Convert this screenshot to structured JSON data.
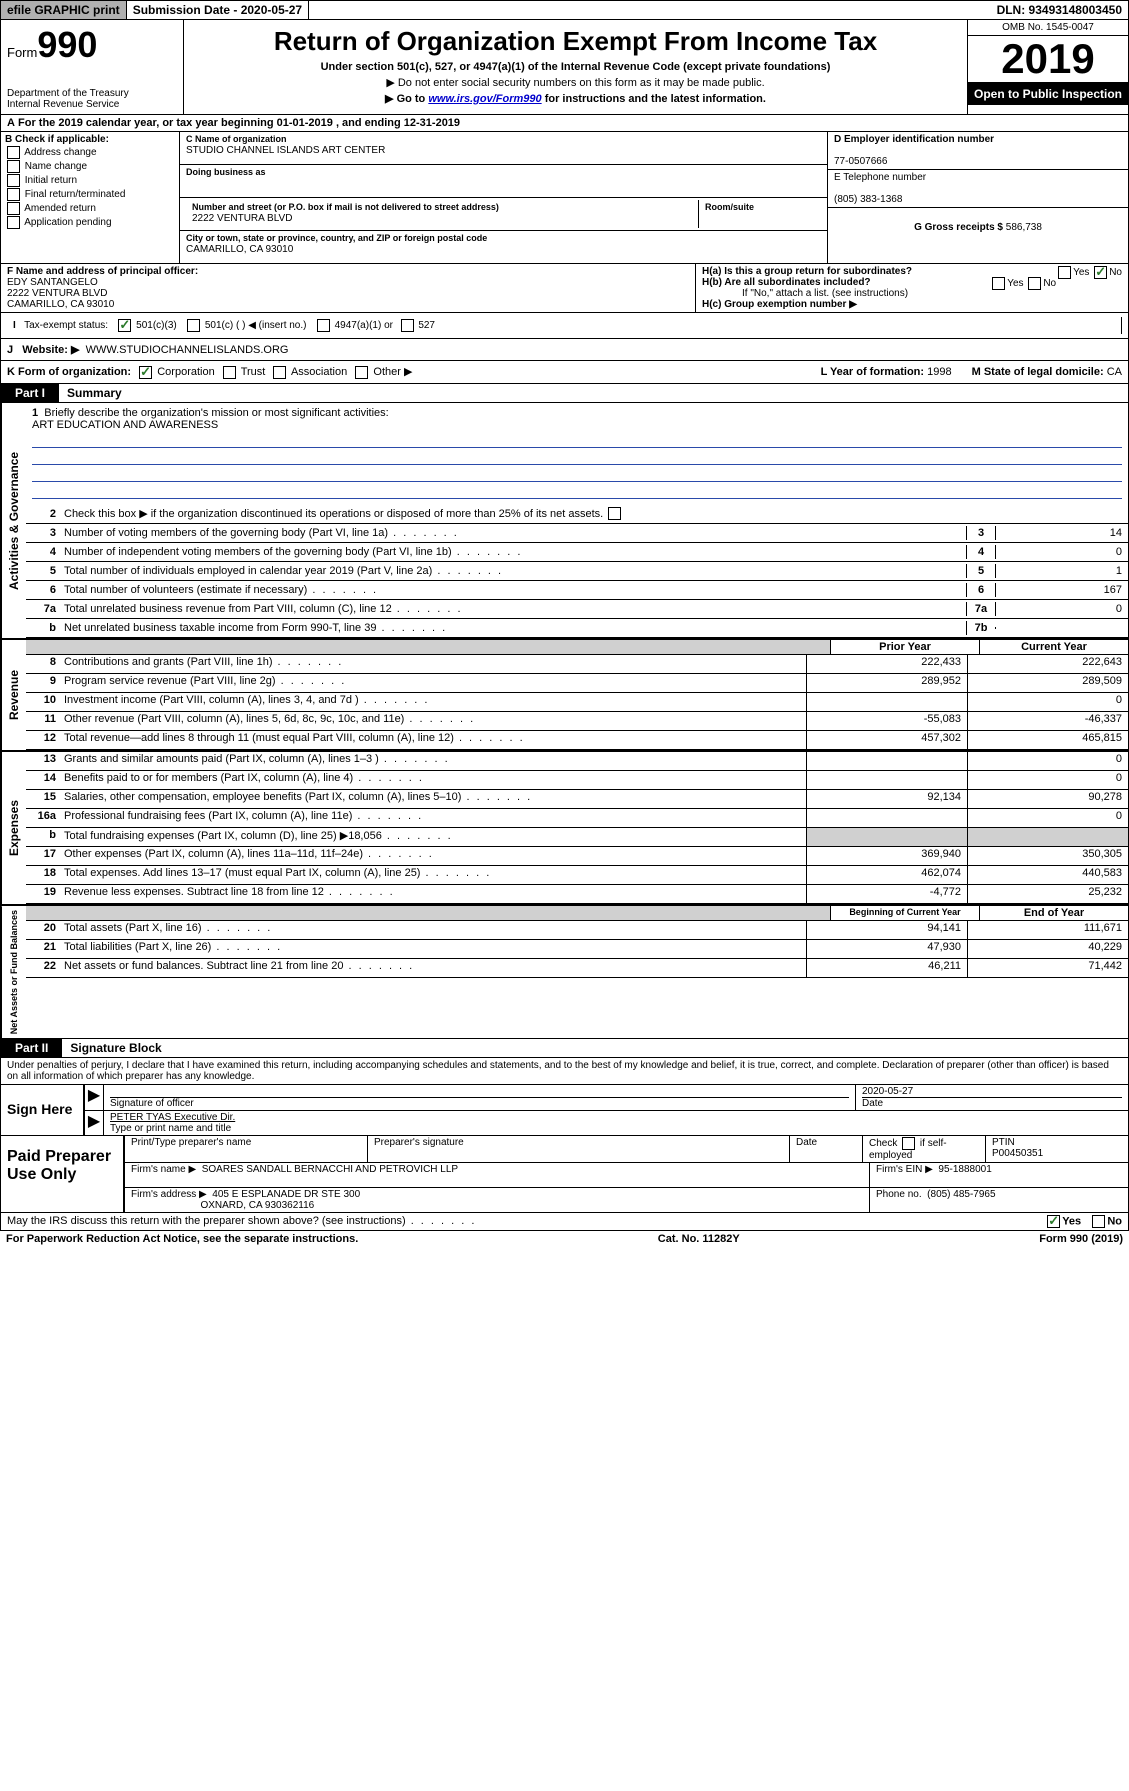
{
  "top": {
    "efile": "efile GRAPHIC print",
    "sub_date_label": "Submission Date - 2020-05-27",
    "dln": "DLN: 93493148003450"
  },
  "header": {
    "form_label": "Form",
    "form_num": "990",
    "dept": "Department of the Treasury",
    "irs": "Internal Revenue Service",
    "title": "Return of Organization Exempt From Income Tax",
    "subtitle": "Under section 501(c), 527, or 4947(a)(1) of the Internal Revenue Code (except private foundations)",
    "hint1": "▶ Do not enter social security numbers on this form as it may be made public.",
    "hint2_pre": "▶ Go to ",
    "hint2_link": "www.irs.gov/Form990",
    "hint2_post": " for instructions and the latest information.",
    "omb": "OMB No. 1545-0047",
    "year": "2019",
    "open_pub": "Open to Public Inspection"
  },
  "rowA": "For the 2019 calendar year, or tax year beginning 01-01-2019     , and ending 12-31-2019",
  "colB": {
    "label": "B Check if applicable:",
    "c1": "Address change",
    "c2": "Name change",
    "c3": "Initial return",
    "c4": "Final return/terminated",
    "c5": "Amended return",
    "c6": "Application pending"
  },
  "colC": {
    "name_label": "C Name of organization",
    "org_name": "STUDIO CHANNEL ISLANDS ART CENTER",
    "dba_label": "Doing business as",
    "addr_label": "Number and street (or P.O. box if mail is not delivered to street address)",
    "addr": "2222 VENTURA BLVD",
    "room_label": "Room/suite",
    "city_label": "City or town, state or province, country, and ZIP or foreign postal code",
    "city": "CAMARILLO, CA   93010"
  },
  "colD": {
    "d_label": "D Employer identification number",
    "ein": "77-0507666",
    "e_label": "E Telephone number",
    "phone": "(805) 383-1368",
    "g_label": "G Gross receipts $",
    "g_val": "586,738"
  },
  "rowF": {
    "f_label": "F  Name and address of principal officer:",
    "officer": "EDY SANTANGELO",
    "addr1": "2222 VENTURA BLVD",
    "addr2": "CAMARILLO, CA   93010",
    "ha": "H(a)  Is this a group return for subordinates?",
    "hb": "H(b)  Are all subordinates included?",
    "hb_note": "If \"No,\" attach a list. (see instructions)",
    "hc": "H(c)  Group exemption number ▶"
  },
  "taxStatus": {
    "label": "Tax-exempt status:",
    "c1": "501(c)(3)",
    "c2": "501(c) (    ) ◀ (insert no.)",
    "c3": "4947(a)(1) or",
    "c4": "527"
  },
  "website": {
    "label": "Website: ▶",
    "val": "WWW.STUDIOCHANNELISLANDS.ORG"
  },
  "rowK": {
    "label": "K Form of organization:",
    "c1": "Corporation",
    "c2": "Trust",
    "c3": "Association",
    "c4": "Other ▶",
    "l_label": "L Year of formation:",
    "l_val": "1998",
    "m_label": "M State of legal domicile:",
    "m_val": "CA"
  },
  "part1": {
    "tab": "Part I",
    "title": "Summary"
  },
  "mission": {
    "num": "1",
    "label": "Briefly describe the organization's mission or most significant activities:",
    "text": "ART EDUCATION AND AWARENESS"
  },
  "lines_gov": [
    {
      "num": "2",
      "text": "Check this box ▶  if the organization discontinued its operations or disposed of more than 25% of its net assets.",
      "box": "",
      "val": ""
    },
    {
      "num": "3",
      "text": "Number of voting members of the governing body (Part VI, line 1a)",
      "box": "3",
      "val": "14"
    },
    {
      "num": "4",
      "text": "Number of independent voting members of the governing body (Part VI, line 1b)",
      "box": "4",
      "val": "0"
    },
    {
      "num": "5",
      "text": "Total number of individuals employed in calendar year 2019 (Part V, line 2a)",
      "box": "5",
      "val": "1"
    },
    {
      "num": "6",
      "text": "Total number of volunteers (estimate if necessary)",
      "box": "6",
      "val": "167"
    },
    {
      "num": "7a",
      "text": "Total unrelated business revenue from Part VIII, column (C), line 12",
      "box": "7a",
      "val": "0"
    },
    {
      "num": "b",
      "text": "Net unrelated business taxable income from Form 990-T, line 39",
      "box": "7b",
      "val": ""
    }
  ],
  "twocol": {
    "h1": "Prior Year",
    "h2": "Current Year",
    "h3": "Beginning of Current Year",
    "h4": "End of Year"
  },
  "revenue": [
    {
      "num": "8",
      "text": "Contributions and grants (Part VIII, line 1h)",
      "v1": "222,433",
      "v2": "222,643"
    },
    {
      "num": "9",
      "text": "Program service revenue (Part VIII, line 2g)",
      "v1": "289,952",
      "v2": "289,509"
    },
    {
      "num": "10",
      "text": "Investment income (Part VIII, column (A), lines 3, 4, and 7d )",
      "v1": "",
      "v2": "0"
    },
    {
      "num": "11",
      "text": "Other revenue (Part VIII, column (A), lines 5, 6d, 8c, 9c, 10c, and 11e)",
      "v1": "-55,083",
      "v2": "-46,337"
    },
    {
      "num": "12",
      "text": "Total revenue—add lines 8 through 11 (must equal Part VIII, column (A), line 12)",
      "v1": "457,302",
      "v2": "465,815"
    }
  ],
  "expenses": [
    {
      "num": "13",
      "text": "Grants and similar amounts paid (Part IX, column (A), lines 1–3 )",
      "v1": "",
      "v2": "0"
    },
    {
      "num": "14",
      "text": "Benefits paid to or for members (Part IX, column (A), line 4)",
      "v1": "",
      "v2": "0"
    },
    {
      "num": "15",
      "text": "Salaries, other compensation, employee benefits (Part IX, column (A), lines 5–10)",
      "v1": "92,134",
      "v2": "90,278"
    },
    {
      "num": "16a",
      "text": "Professional fundraising fees (Part IX, column (A), line 11e)",
      "v1": "",
      "v2": "0"
    },
    {
      "num": "b",
      "text": "Total fundraising expenses (Part IX, column (D), line 25) ▶18,056",
      "v1": "shade",
      "v2": "shade"
    },
    {
      "num": "17",
      "text": "Other expenses (Part IX, column (A), lines 11a–11d, 11f–24e)",
      "v1": "369,940",
      "v2": "350,305"
    },
    {
      "num": "18",
      "text": "Total expenses. Add lines 13–17 (must equal Part IX, column (A), line 25)",
      "v1": "462,074",
      "v2": "440,583"
    },
    {
      "num": "19",
      "text": "Revenue less expenses. Subtract line 18 from line 12",
      "v1": "-4,772",
      "v2": "25,232"
    }
  ],
  "netassets": [
    {
      "num": "20",
      "text": "Total assets (Part X, line 16)",
      "v1": "94,141",
      "v2": "111,671"
    },
    {
      "num": "21",
      "text": "Total liabilities (Part X, line 26)",
      "v1": "47,930",
      "v2": "40,229"
    },
    {
      "num": "22",
      "text": "Net assets or fund balances. Subtract line 21 from line 20",
      "v1": "46,211",
      "v2": "71,442"
    }
  ],
  "part2": {
    "tab": "Part II",
    "title": "Signature Block"
  },
  "perjury": "Under penalties of perjury, I declare that I have examined this return, including accompanying schedules and statements, and to the best of my knowledge and belief, it is true, correct, and complete. Declaration of preparer (other than officer) is based on all information of which preparer has any knowledge.",
  "sign": {
    "label": "Sign Here",
    "sig_label": "Signature of officer",
    "date": "2020-05-27",
    "date_label": "Date",
    "name": "PETER TYAS Executive Dir.",
    "name_label": "Type or print name and title"
  },
  "prep": {
    "label": "Paid Preparer Use Only",
    "h1": "Print/Type preparer's name",
    "h2": "Preparer's signature",
    "h3": "Date",
    "h4_pre": "Check",
    "h4_post": "if self-employed",
    "ptin_label": "PTIN",
    "ptin": "P00450351",
    "firm_name_label": "Firm's name      ▶",
    "firm_name": "SOARES SANDALL BERNACCHI AND PETROVICH LLP",
    "firm_ein_label": "Firm's EIN ▶",
    "firm_ein": "95-1888001",
    "firm_addr_label": "Firm's address ▶",
    "firm_addr1": "405 E ESPLANADE DR STE 300",
    "firm_addr2": "OXNARD, CA   930362116",
    "phone_label": "Phone no.",
    "phone": "(805) 485-7965"
  },
  "may": {
    "text": "May the IRS discuss this return with the preparer shown above? (see instructions)",
    "yes": "Yes",
    "no": "No"
  },
  "footer": {
    "left": "For Paperwork Reduction Act Notice, see the separate instructions.",
    "mid": "Cat. No. 11282Y",
    "right": "Form 990 (2019)"
  },
  "sides": {
    "gov": "Activities & Governance",
    "rev": "Revenue",
    "exp": "Expenses",
    "net": "Net Assets or Fund Balances"
  }
}
